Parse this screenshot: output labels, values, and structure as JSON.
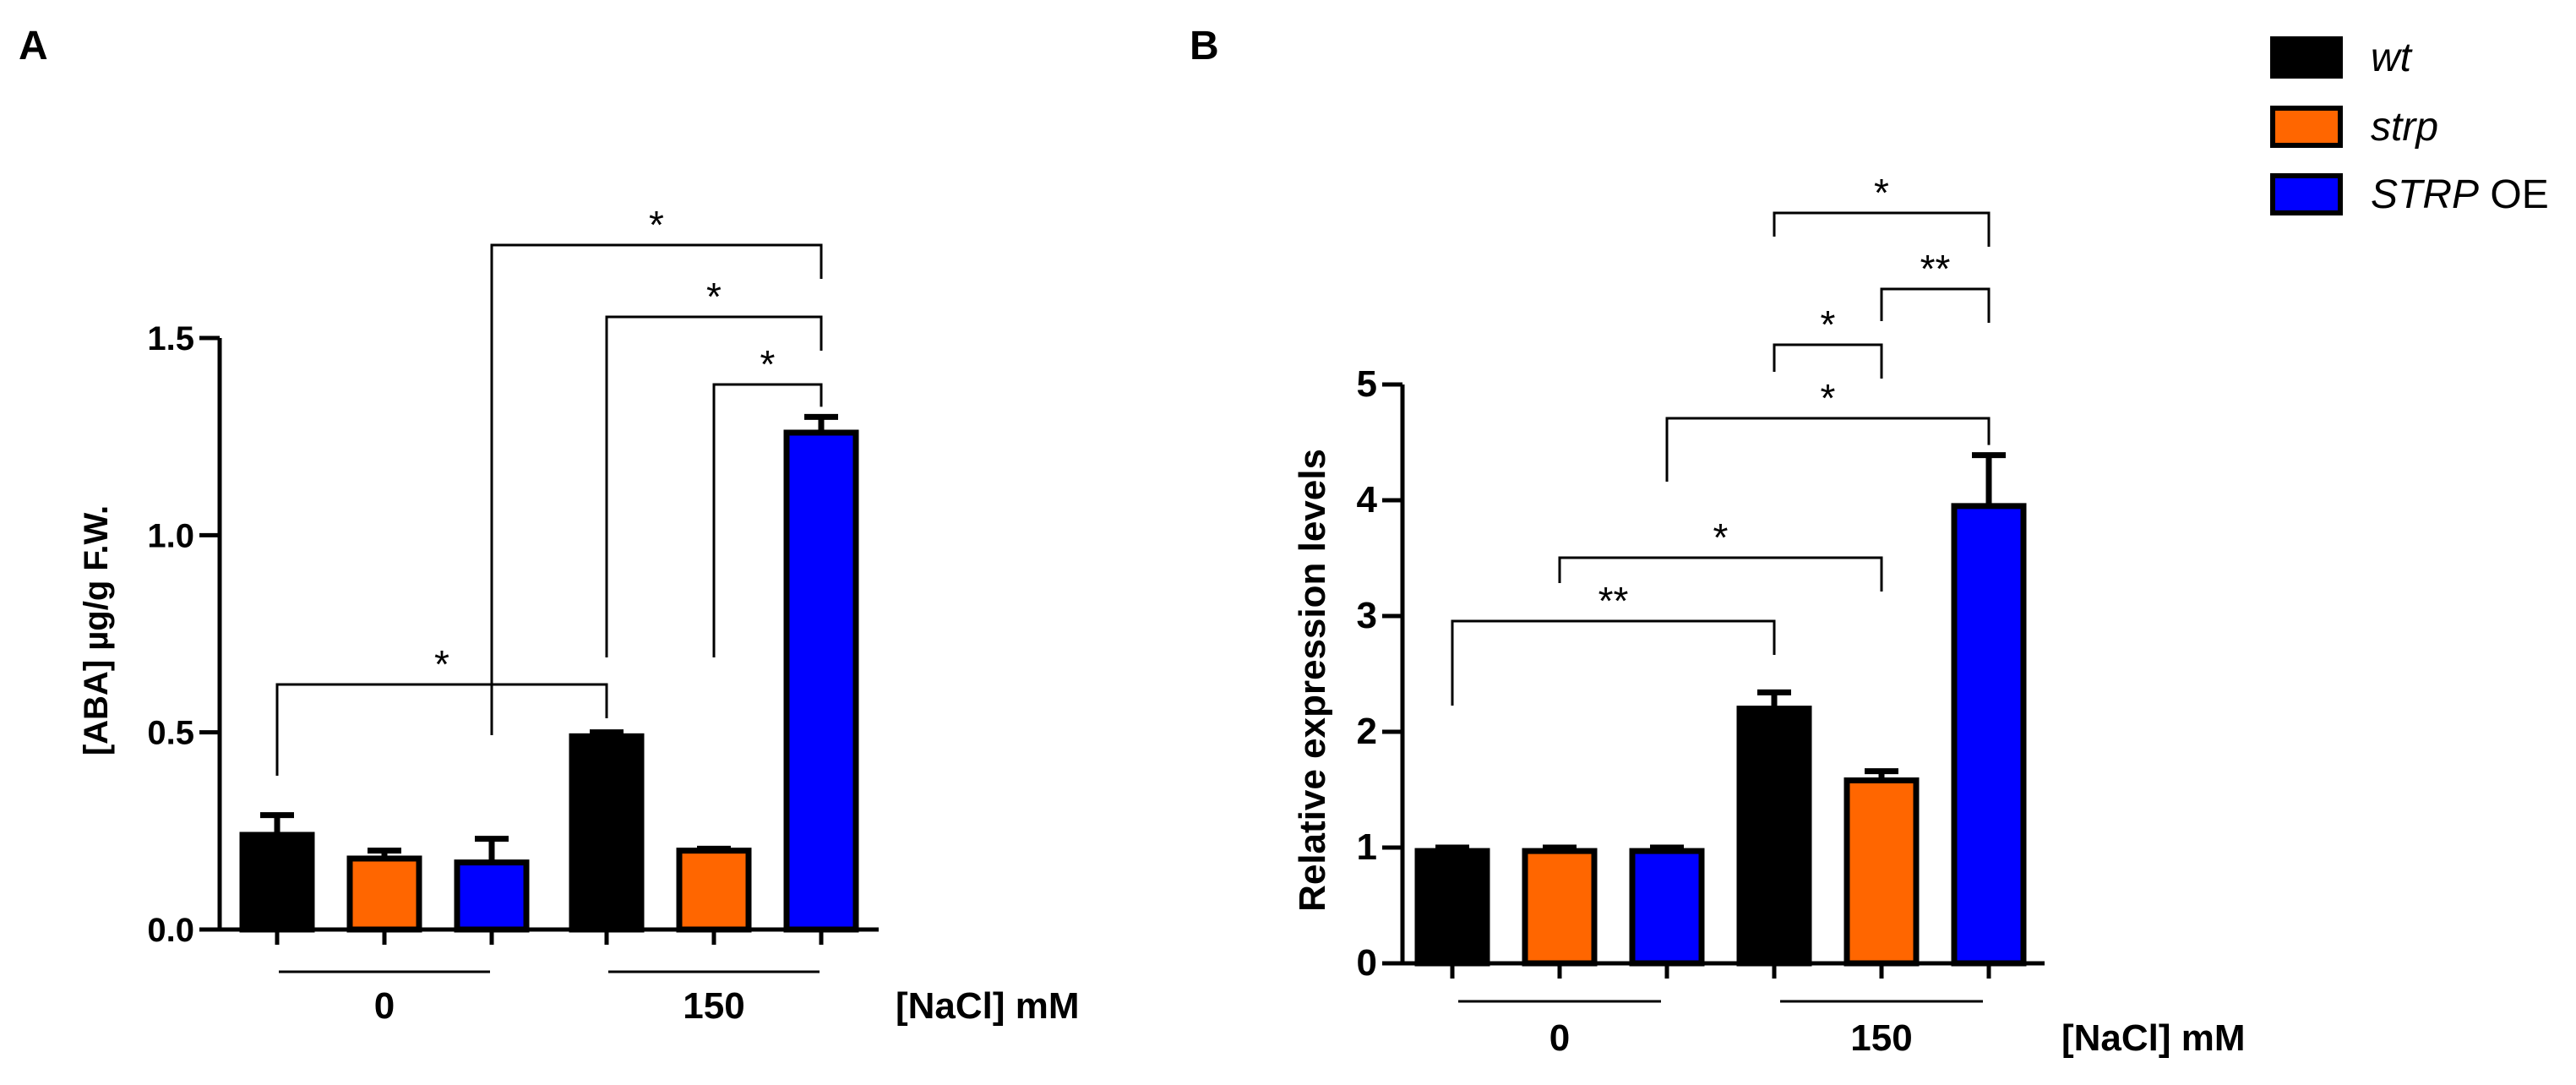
{
  "legend": {
    "items": [
      {
        "label_main": "wt",
        "label_suffix": "",
        "color": "#000000"
      },
      {
        "label_main": "strp",
        "label_suffix": "",
        "color": "#ff6600"
      },
      {
        "label_main": "STRP",
        "label_suffix": " OE",
        "color": "#0000ff"
      }
    ]
  },
  "chart_data": [
    {
      "panel": "A",
      "type": "bar",
      "ylabel": "[ABA] µg/g F.W.",
      "xlabel": "[NaCl] mM",
      "ylim": [
        0,
        1.5
      ],
      "yticks": [
        "0.0",
        "0.5",
        "1.0",
        "1.5"
      ],
      "ytick_values": [
        0,
        0.5,
        1.0,
        1.5
      ],
      "groups": [
        "0",
        "150"
      ],
      "series": [
        {
          "name": "wt",
          "values": [
            0.24,
            0.49
          ],
          "errors": [
            0.05,
            0.01
          ]
        },
        {
          "name": "strp",
          "values": [
            0.18,
            0.2
          ],
          "errors": [
            0.02,
            0.005
          ]
        },
        {
          "name": "STRP OE",
          "values": [
            0.17,
            1.26
          ],
          "errors": [
            0.06,
            0.04
          ]
        }
      ],
      "significance": [
        {
          "from": [
            0,
            "wt"
          ],
          "to": [
            1,
            "wt"
          ],
          "label": "*"
        },
        {
          "from": [
            1,
            "strp"
          ],
          "to": [
            1,
            "STRP OE"
          ],
          "label": "*"
        },
        {
          "from": [
            1,
            "wt"
          ],
          "to": [
            1,
            "STRP OE"
          ],
          "label": "*"
        },
        {
          "from": [
            0,
            "STRP OE"
          ],
          "to": [
            1,
            "STRP OE"
          ],
          "label": "*"
        }
      ]
    },
    {
      "panel": "B",
      "type": "bar",
      "ylabel": "Relative expression levels",
      "xlabel": "[NaCl] mM",
      "ylim": [
        0,
        5
      ],
      "yticks": [
        "0",
        "1",
        "2",
        "3",
        "4",
        "5"
      ],
      "ytick_values": [
        0,
        1,
        2,
        3,
        4,
        5
      ],
      "groups": [
        "0",
        "150"
      ],
      "series": [
        {
          "name": "wt",
          "values": [
            0.97,
            2.2
          ],
          "errors": [
            0.03,
            0.14
          ]
        },
        {
          "name": "strp",
          "values": [
            0.97,
            1.58
          ],
          "errors": [
            0.03,
            0.08
          ]
        },
        {
          "name": "STRP OE",
          "values": [
            0.97,
            3.95
          ],
          "errors": [
            0.03,
            0.44
          ]
        }
      ],
      "significance": [
        {
          "from": [
            0,
            "wt"
          ],
          "to": [
            1,
            "wt"
          ],
          "label": "**"
        },
        {
          "from": [
            0,
            "strp"
          ],
          "to": [
            1,
            "strp"
          ],
          "label": "*"
        },
        {
          "from": [
            0,
            "STRP OE"
          ],
          "to": [
            1,
            "STRP OE"
          ],
          "label": "*"
        },
        {
          "from": [
            1,
            "wt"
          ],
          "to": [
            1,
            "strp"
          ],
          "label": "*"
        },
        {
          "from": [
            1,
            "strp"
          ],
          "to": [
            1,
            "STRP OE"
          ],
          "label": "**"
        },
        {
          "from": [
            1,
            "wt"
          ],
          "to": [
            1,
            "STRP OE"
          ],
          "label": "*"
        }
      ]
    }
  ]
}
